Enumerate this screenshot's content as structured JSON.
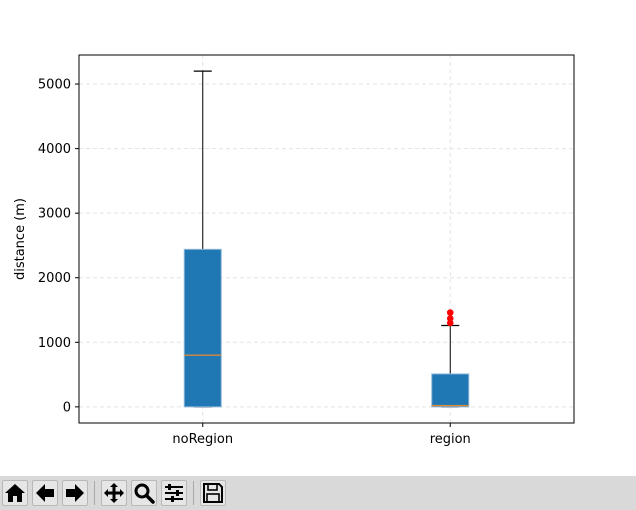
{
  "chart_data": {
    "type": "box",
    "title": "",
    "xlabel": "",
    "ylabel": "distance (m)",
    "ylim": [
      -250,
      5450
    ],
    "yticks": [
      0,
      1000,
      2000,
      3000,
      4000,
      5000
    ],
    "categories": [
      "noRegion",
      "region"
    ],
    "boxes": [
      {
        "category": "noRegion",
        "whisker_low": 0,
        "q1": 0,
        "median": 800,
        "q3": 2440,
        "whisker_high": 5200,
        "fliers": []
      },
      {
        "category": "region",
        "whisker_low": 0,
        "q1": 0,
        "median": 20,
        "q3": 510,
        "whisker_high": 1260,
        "fliers": [
          1300,
          1370,
          1460
        ]
      }
    ],
    "grid": true,
    "colors": {
      "box_fill": "#1f77b4",
      "box_edge": "#8fb7d9",
      "median": "#d8893a",
      "flier": "#ff0000",
      "grid": "#e3e3e3"
    }
  },
  "toolbar": {
    "buttons": [
      {
        "name": "home",
        "icon": "home-icon"
      },
      {
        "name": "back",
        "icon": "arrow-left-icon"
      },
      {
        "name": "forward",
        "icon": "arrow-right-icon"
      },
      {
        "name": "pan",
        "icon": "move-icon"
      },
      {
        "name": "zoom",
        "icon": "magnifier-icon"
      },
      {
        "name": "configure",
        "icon": "sliders-icon"
      },
      {
        "name": "save",
        "icon": "floppy-icon"
      }
    ]
  }
}
